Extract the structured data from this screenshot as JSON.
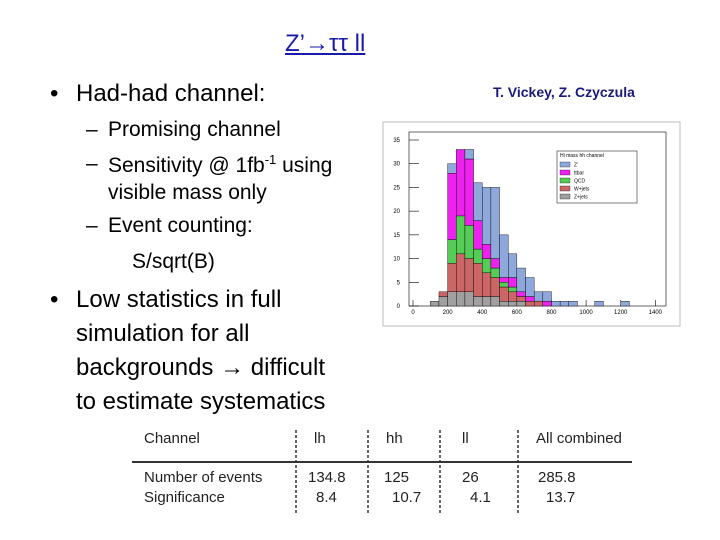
{
  "title": "Z’→ττ ll",
  "authors": "T. Vickey, Z. Czyczula",
  "bullet1": {
    "text": "Had-had channel:",
    "sub1": "Promising channel",
    "sub2": {
      "text": "Sensitivity @ 1fb",
      "sup": "-1",
      "rest": "using",
      "line2": "visible mass only"
    },
    "sub3": {
      "text": "Event counting:",
      "line2": "S/sqrt(B)"
    }
  },
  "bullet2": {
    "lines": [
      "Low statistics in full",
      "simulation for all",
      "backgrounds → difficult",
      "to estimate systematics"
    ]
  },
  "table": {
    "header": [
      "Channel",
      "lh",
      "hh",
      "ll",
      "All combined"
    ],
    "rows": [
      [
        "Number of events",
        "134.8",
        "125",
        "26",
        "285.8"
      ],
      [
        "Significance",
        "8.4",
        "10.7",
        "4.1",
        "13.7"
      ]
    ]
  },
  "chart_data": {
    "type": "histogram",
    "legend_title": "Hi mass hh channel",
    "bins": [
      100,
      150,
      200,
      250,
      300,
      350,
      400,
      450,
      500,
      550,
      600,
      650,
      700,
      750,
      800,
      850,
      900,
      950,
      1000,
      1050,
      1100,
      1150,
      1200,
      1250,
      1300,
      1350,
      1400
    ],
    "series": [
      {
        "name": "Z+jets",
        "color": "#a0a0a0",
        "values": [
          1,
          2,
          3,
          3,
          3,
          2,
          2,
          2,
          1,
          1,
          1,
          0,
          0,
          0,
          0,
          0,
          0,
          0,
          0,
          0,
          0,
          0,
          0,
          0,
          0,
          0
        ]
      },
      {
        "name": "W+jets",
        "color": "#cc6666",
        "values": [
          0,
          1,
          6,
          8,
          7,
          7,
          5,
          4,
          3,
          2,
          1,
          1,
          1,
          0,
          0,
          0,
          0,
          0,
          0,
          0,
          0,
          0,
          0,
          0,
          0,
          0
        ]
      },
      {
        "name": "QCD",
        "color": "#55cc55",
        "values": [
          0,
          0,
          5,
          8,
          7,
          3,
          3,
          2,
          1,
          1,
          0,
          0,
          0,
          0,
          0,
          0,
          0,
          0,
          0,
          0,
          0,
          0,
          0,
          0,
          0,
          0
        ]
      },
      {
        "name": "ttbar",
        "color": "#ee22ee",
        "values": [
          0,
          0,
          14,
          14,
          14,
          6,
          3,
          2,
          1,
          2,
          1,
          1,
          0,
          1,
          0,
          0,
          0,
          0,
          0,
          0,
          0,
          0,
          0,
          0,
          0,
          0
        ]
      },
      {
        "name": "Z’",
        "color": "#8fa8dc",
        "values": [
          0,
          0,
          2,
          0,
          2,
          8,
          12,
          15,
          9,
          5,
          5,
          4,
          2,
          2,
          1,
          1,
          1,
          0,
          0,
          1,
          0,
          0,
          1,
          0,
          0,
          0
        ]
      }
    ],
    "xlim": [
      0,
      1450
    ],
    "ylim": [
      0,
      35
    ],
    "xticks": [
      0,
      200,
      400,
      600,
      800,
      1000,
      1200,
      1400
    ],
    "yticks": [
      0,
      5,
      10,
      15,
      20,
      25,
      30,
      35
    ]
  }
}
